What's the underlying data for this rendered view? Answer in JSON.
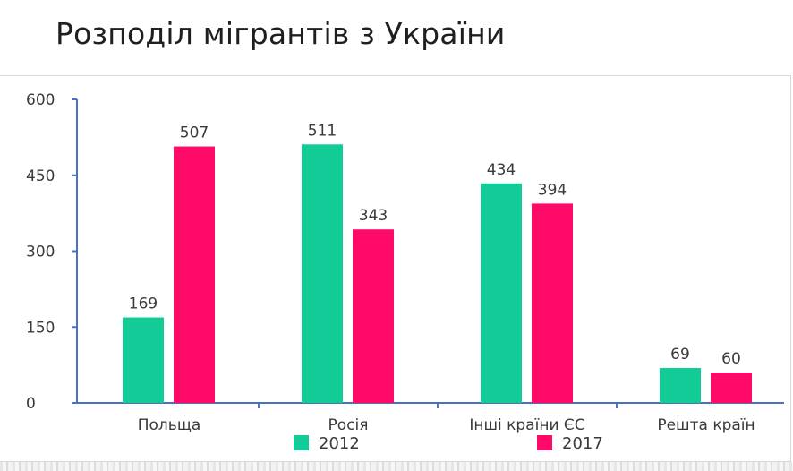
{
  "slide": {
    "title": "Розподіл мігрантів з України"
  },
  "chart_data": {
    "type": "bar",
    "title": "",
    "xlabel": "",
    "ylabel": "",
    "categories": [
      "Польща",
      "Росія",
      "Інші країни ЄС",
      "Решта країн"
    ],
    "series": [
      {
        "name": "2012",
        "values": [
          169,
          511,
          434,
          69
        ],
        "color": "#12cb96"
      },
      {
        "name": "2017",
        "values": [
          507,
          343,
          394,
          60
        ],
        "color": "#ff0a67"
      }
    ],
    "ylim": [
      0,
      600
    ],
    "yticks": [
      "0",
      "150",
      "300",
      "450",
      "600"
    ],
    "grid": false,
    "legend_position": "bottom-center",
    "axis_color": "#4a6fc7"
  }
}
